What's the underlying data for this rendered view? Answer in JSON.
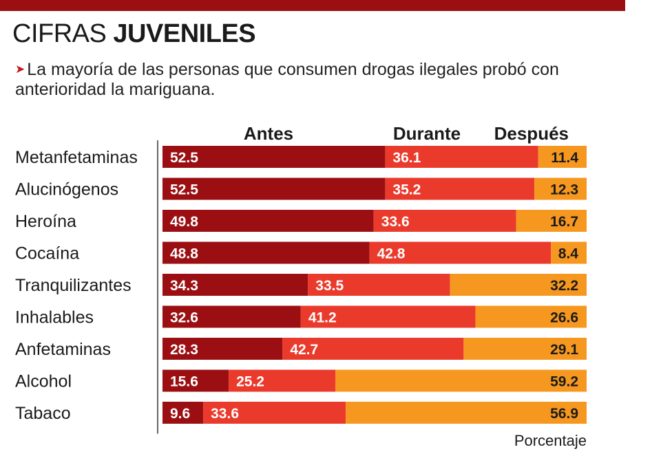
{
  "header": {
    "title_light": "CIFRAS",
    "title_bold": "JUVENILES",
    "subtitle": "La mayoría de las personas que consumen drogas ilegales probó con anterioridad la mariguana."
  },
  "colors": {
    "top_bar": "#9b0f12",
    "antes": "#9b0f12",
    "durante": "#ea3a2c",
    "despues": "#f6981f",
    "arrow": "#c8141d"
  },
  "chart_data": {
    "type": "bar",
    "orientation": "horizontal",
    "stacked": true,
    "categories": [
      "Metanfetaminas",
      "Alucinógenos",
      "Heroína",
      "Cocaína",
      "Tranquilizantes",
      "Inhalables",
      "Anfetaminas",
      "Alcohol",
      "Tabaco"
    ],
    "series": [
      {
        "name": "Antes",
        "color": "#9b0f12",
        "values": [
          52.5,
          52.5,
          49.8,
          48.8,
          34.3,
          32.6,
          28.3,
          15.6,
          9.6
        ]
      },
      {
        "name": "Durante",
        "color": "#ea3a2c",
        "values": [
          36.1,
          35.2,
          33.6,
          42.8,
          33.5,
          41.2,
          42.7,
          25.2,
          33.6
        ]
      },
      {
        "name": "Después",
        "color": "#f6981f",
        "values": [
          11.4,
          12.3,
          16.7,
          8.4,
          32.2,
          26.6,
          29.1,
          59.2,
          56.9
        ]
      }
    ],
    "unit_label": "Porcentaje",
    "xlim": [
      0,
      100
    ],
    "grid": false,
    "legend": "top"
  }
}
